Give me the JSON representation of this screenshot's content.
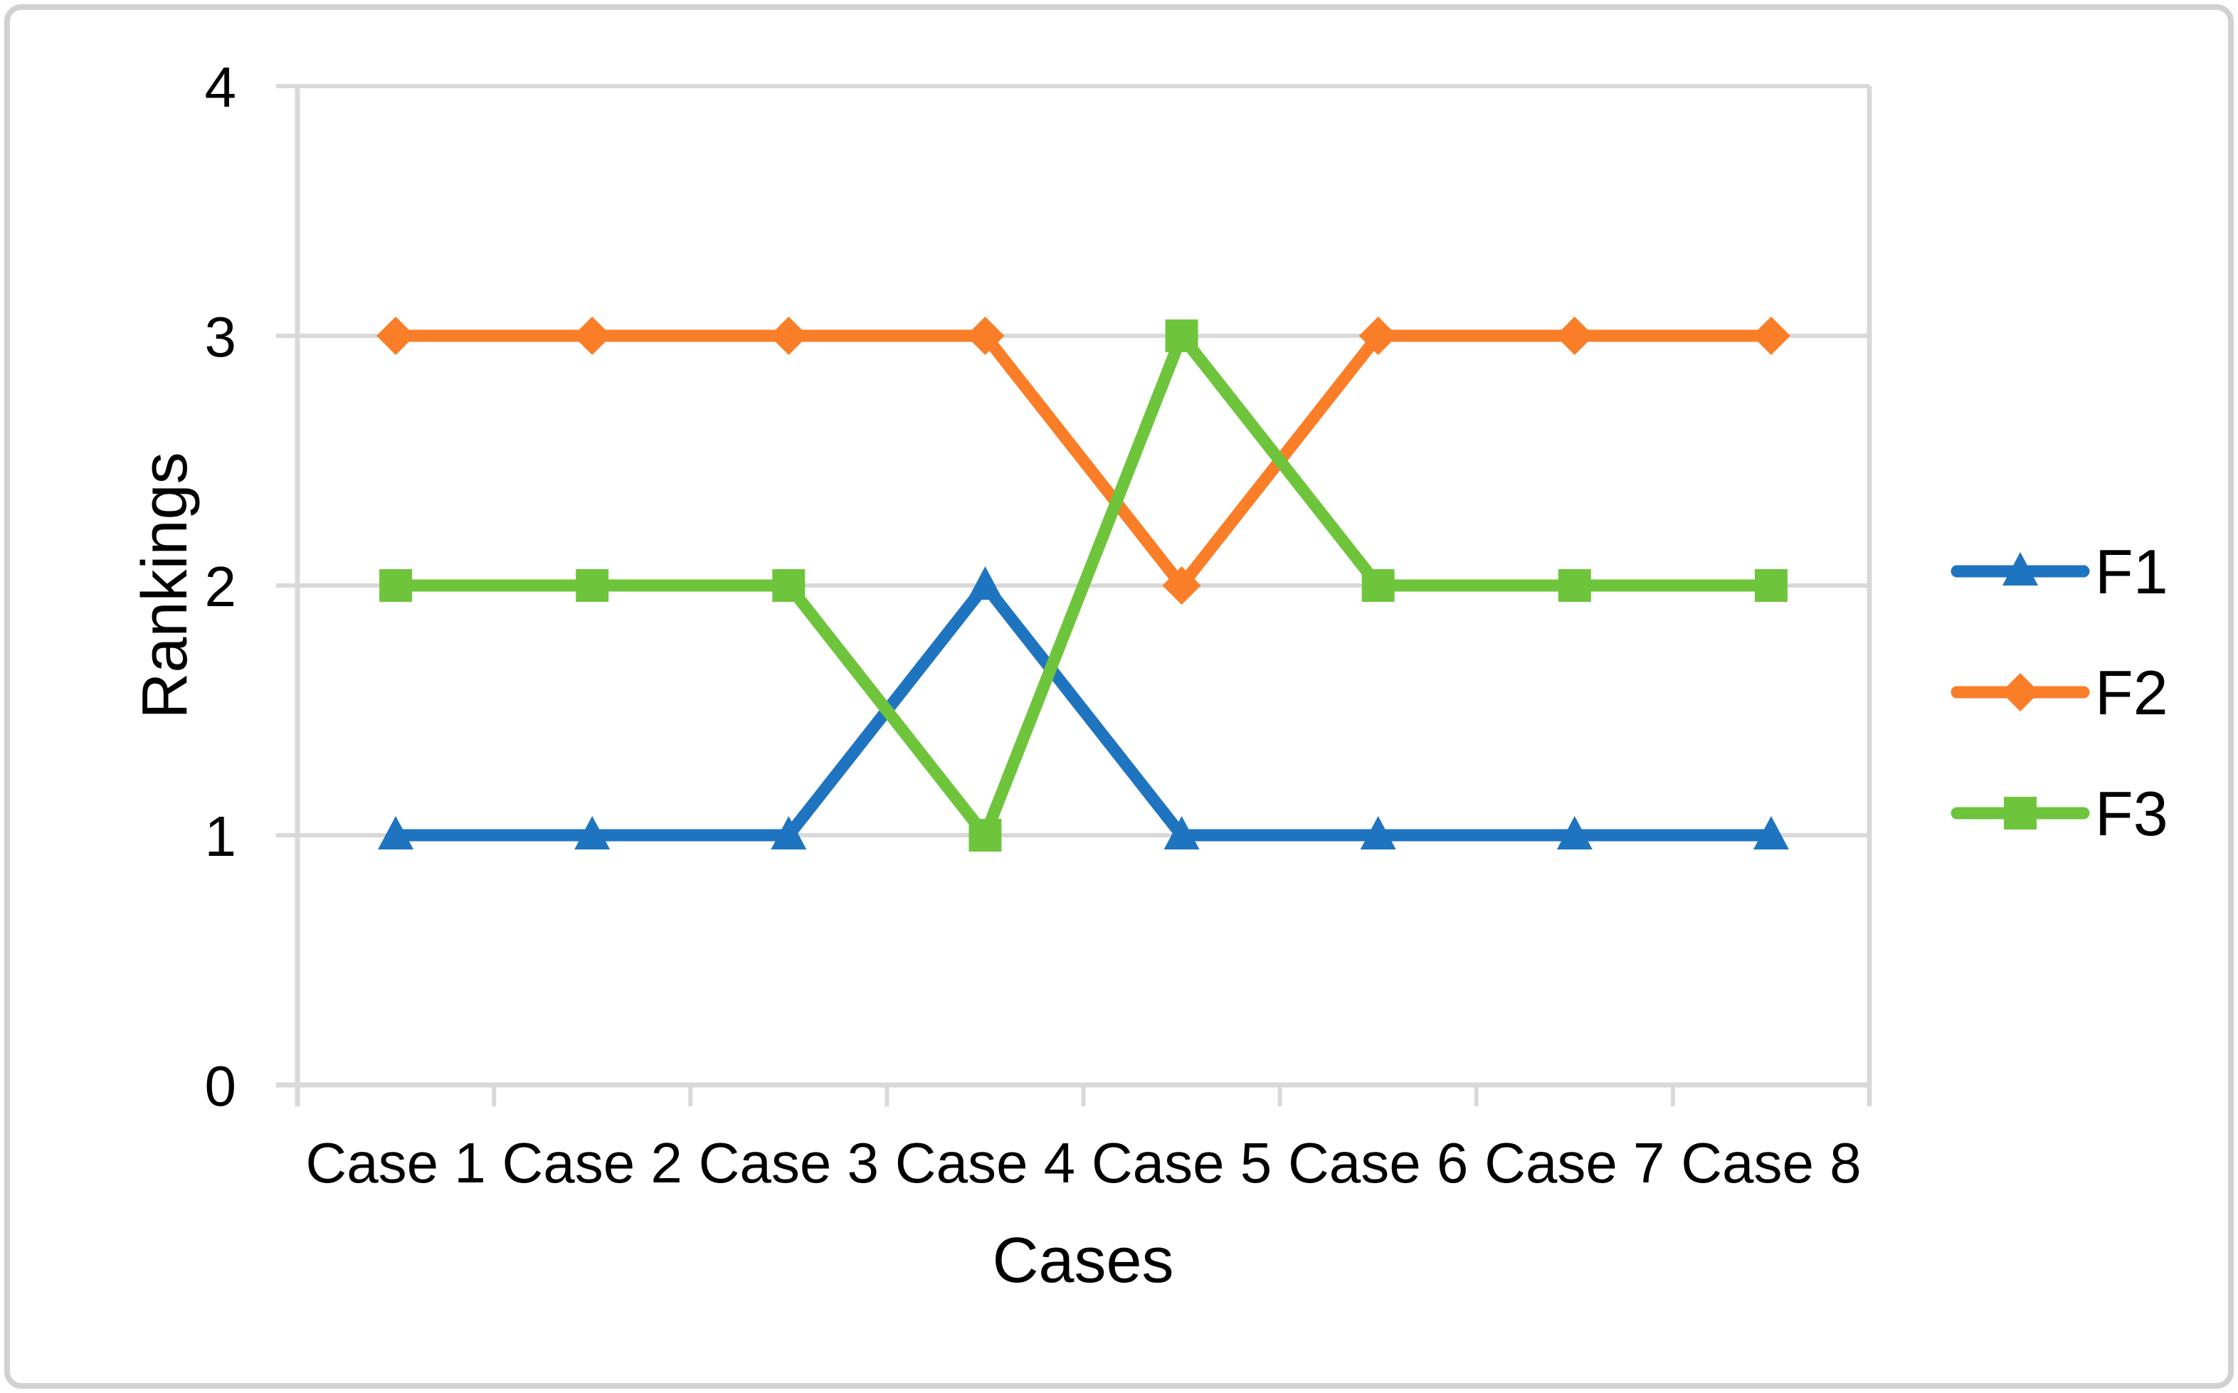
{
  "figure": {
    "background": "#FFFFFF",
    "border_color": "#D1D1D1",
    "gridline_color": "#D9D9D9",
    "text_color": "#000000"
  },
  "chart_data": {
    "type": "line",
    "title": "",
    "xlabel": "Cases",
    "ylabel": "Rankings",
    "categories": [
      "Case 1",
      "Case 2",
      "Case 3",
      "Case 4",
      "Case 5",
      "Case 6",
      "Case 7",
      "Case 8"
    ],
    "yticks": [
      "0",
      "1",
      "2",
      "3",
      "4"
    ],
    "ylim": [
      0,
      4
    ],
    "grid": true,
    "legend_position": "right",
    "series": [
      {
        "name": "F1",
        "marker": "triangle",
        "color": "#1F74C0",
        "values": [
          1,
          1,
          1,
          2,
          1,
          1,
          1,
          1
        ]
      },
      {
        "name": "F2",
        "marker": "diamond",
        "color": "#F97E27",
        "values": [
          3,
          3,
          3,
          3,
          2,
          3,
          3,
          3
        ]
      },
      {
        "name": "F3",
        "marker": "square",
        "color": "#6EC53C",
        "values": [
          2,
          2,
          2,
          1,
          3,
          2,
          2,
          2
        ]
      }
    ]
  }
}
